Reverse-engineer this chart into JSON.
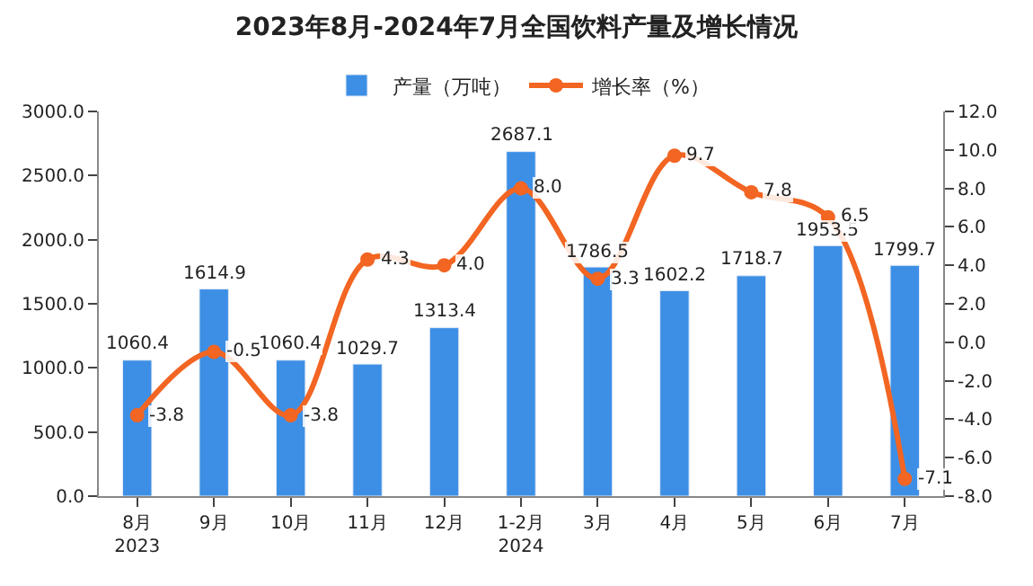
{
  "chart_data": {
    "type": "bar",
    "title": "2023年8月-2024年7月全国饮料产量及增长情况",
    "categories": [
      "8月\n2023",
      "9月",
      "10月",
      "11月",
      "12月",
      "1-2月\n2024",
      "3月",
      "4月",
      "5月",
      "6月",
      "7月"
    ],
    "series": [
      {
        "name": "产量（万吨）",
        "color": "#3d8fe6",
        "values": [
          1060.4,
          1614.9,
          1060.4,
          1029.7,
          1313.4,
          2687.1,
          1786.5,
          1602.2,
          1718.7,
          1953.5,
          1799.7
        ]
      },
      {
        "name": "增长率（%）",
        "type": "line",
        "axis": "y2",
        "color": "#f26522",
        "values": [
          -3.8,
          -0.5,
          -3.8,
          4.3,
          4.0,
          8.0,
          3.3,
          9.7,
          7.8,
          6.5,
          -7.1
        ],
        "value_labels": [
          "-3.8",
          "-0.5",
          "-3.8",
          "4.3",
          "4.0",
          "8.0",
          "3.3",
          "9.7",
          "7.8",
          "6.5",
          "-7.1"
        ]
      }
    ],
    "ylim": [
      0,
      3000
    ],
    "yticks": [
      {
        "value": 0,
        "label": "0.0"
      },
      {
        "value": 500,
        "label": "500.0"
      },
      {
        "value": 1000,
        "label": "1000.0"
      },
      {
        "value": 1500,
        "label": "1500.0"
      },
      {
        "value": 2000,
        "label": "2000.0"
      },
      {
        "value": 2500,
        "label": "2500.0"
      },
      {
        "value": 3000,
        "label": "3000.0"
      }
    ],
    "y2lim": [
      -8,
      12
    ],
    "y2ticks": [
      {
        "value": -8,
        "label": "-8.0"
      },
      {
        "value": -6,
        "label": "-6.0"
      },
      {
        "value": -4,
        "label": "-4.0"
      },
      {
        "value": -2,
        "label": "-2.0"
      },
      {
        "value": 0,
        "label": "0.0"
      },
      {
        "value": 2,
        "label": "2.0"
      },
      {
        "value": 4,
        "label": "4.0"
      },
      {
        "value": 6,
        "label": "6.0"
      },
      {
        "value": 8,
        "label": "8.0"
      },
      {
        "value": 10,
        "label": "10.0"
      },
      {
        "value": 12,
        "label": "12.0"
      }
    ],
    "data_labels": true,
    "legend": "top",
    "marker": "circle",
    "line_style": "solid"
  }
}
